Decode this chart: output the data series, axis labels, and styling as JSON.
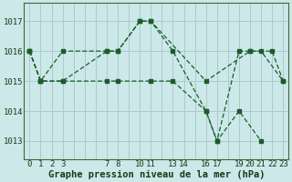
{
  "background_color": "#cce8e8",
  "plot_bg_color": "#cce8e8",
  "grid_color": "#aacccc",
  "line_color": "#1a5c2a",
  "ylabel_values": [
    1013,
    1014,
    1015,
    1016,
    1017
  ],
  "ylim": [
    1012.4,
    1017.6
  ],
  "xlim": [
    -0.5,
    23.5
  ],
  "xlabel": "Graphe pression niveau de la mer (hPa)",
  "series": [
    {
      "x": [
        0,
        1,
        3,
        7,
        8,
        10,
        11,
        16,
        20,
        21,
        23
      ],
      "y": [
        1016,
        1015,
        1016,
        1016,
        1016,
        1017,
        1017,
        1015,
        1016,
        1016,
        1015
      ]
    },
    {
      "x": [
        0,
        1,
        3,
        7,
        8,
        11,
        13,
        16,
        17,
        19,
        21
      ],
      "y": [
        1016,
        1015,
        1015,
        1015,
        1015,
        1015,
        1015,
        1014,
        1013,
        1014,
        1013
      ]
    },
    {
      "x": [
        0,
        1,
        3,
        7,
        8,
        10,
        11,
        13,
        16,
        17,
        19,
        20,
        22,
        23
      ],
      "y": [
        1016,
        1015,
        1015,
        1016,
        1016,
        1017,
        1017,
        1016,
        1014,
        1013,
        1016,
        1016,
        1016,
        1015
      ]
    }
  ],
  "xtick_grouped": [
    "0",
    "1",
    "2",
    "3",
    "",
    "",
    "",
    "7",
    "8",
    "",
    "10",
    "11",
    "",
    "13",
    "14",
    "",
    "16",
    "17",
    "",
    "19",
    "20",
    "21",
    "22",
    "23"
  ],
  "xlabel_fontsize": 7.5,
  "tick_fontsize": 6.5
}
